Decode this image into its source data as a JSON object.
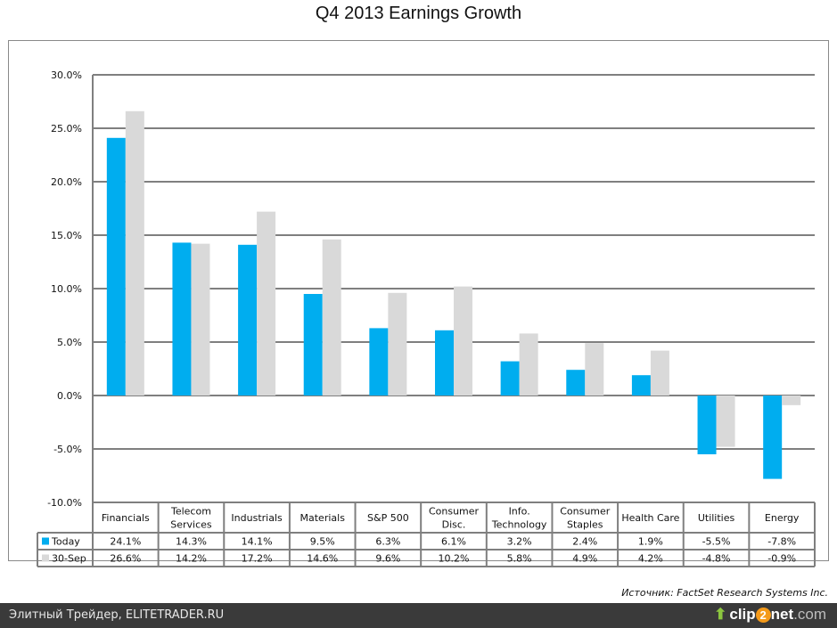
{
  "chart_data": {
    "type": "bar",
    "title": "Q4 2013 Earnings Growth",
    "xlabel": "",
    "ylabel": "",
    "ylim": [
      -10,
      30
    ],
    "yticks": [
      "30.0%",
      "25.0%",
      "20.0%",
      "15.0%",
      "10.0%",
      "5.0%",
      "0.0%",
      "-5.0%",
      "-10.0%"
    ],
    "ytick_values": [
      30,
      25,
      20,
      15,
      10,
      5,
      0,
      -5,
      -10
    ],
    "grid": true,
    "legend": "in data table",
    "categories": [
      "Financials",
      "Telecom Services",
      "Industrials",
      "Materials",
      "S&P 500",
      "Consumer Disc.",
      "Info. Technology",
      "Consumer Staples",
      "Health Care",
      "Utilities",
      "Energy"
    ],
    "category_lines": [
      [
        "Financials"
      ],
      [
        "Telecom",
        "Services"
      ],
      [
        "Industrials"
      ],
      [
        "Materials"
      ],
      [
        "S&P 500"
      ],
      [
        "Consumer",
        "Disc."
      ],
      [
        "Info.",
        "Technology"
      ],
      [
        "Consumer",
        "Staples"
      ],
      [
        "Health Care"
      ],
      [
        "Utilities"
      ],
      [
        "Energy"
      ]
    ],
    "series": [
      {
        "name": "Today",
        "color": "#00adef",
        "values": [
          24.1,
          14.3,
          14.1,
          9.5,
          6.3,
          6.1,
          3.2,
          2.4,
          1.9,
          -5.5,
          -7.8
        ],
        "labels": [
          "24.1%",
          "14.3%",
          "14.1%",
          "9.5%",
          "6.3%",
          "6.1%",
          "3.2%",
          "2.4%",
          "1.9%",
          "-5.5%",
          "-7.8%"
        ]
      },
      {
        "name": "30-Sep",
        "color": "#d9d9d9",
        "values": [
          26.6,
          14.2,
          17.2,
          14.6,
          9.6,
          10.2,
          5.8,
          4.9,
          4.2,
          -4.8,
          -0.9
        ],
        "labels": [
          "26.6%",
          "14.2%",
          "17.2%",
          "14.6%",
          "9.6%",
          "10.2%",
          "5.8%",
          "4.9%",
          "4.2%",
          "-4.8%",
          "-0.9%"
        ]
      }
    ]
  },
  "source": "Источник: FactSet Research Systems Inc.",
  "footer": {
    "site": "Элитный Трейдер, ELITETRADER.RU",
    "logo_clip": "clip",
    "logo_two": "2",
    "logo_net": "net",
    "logo_com": ".com"
  }
}
